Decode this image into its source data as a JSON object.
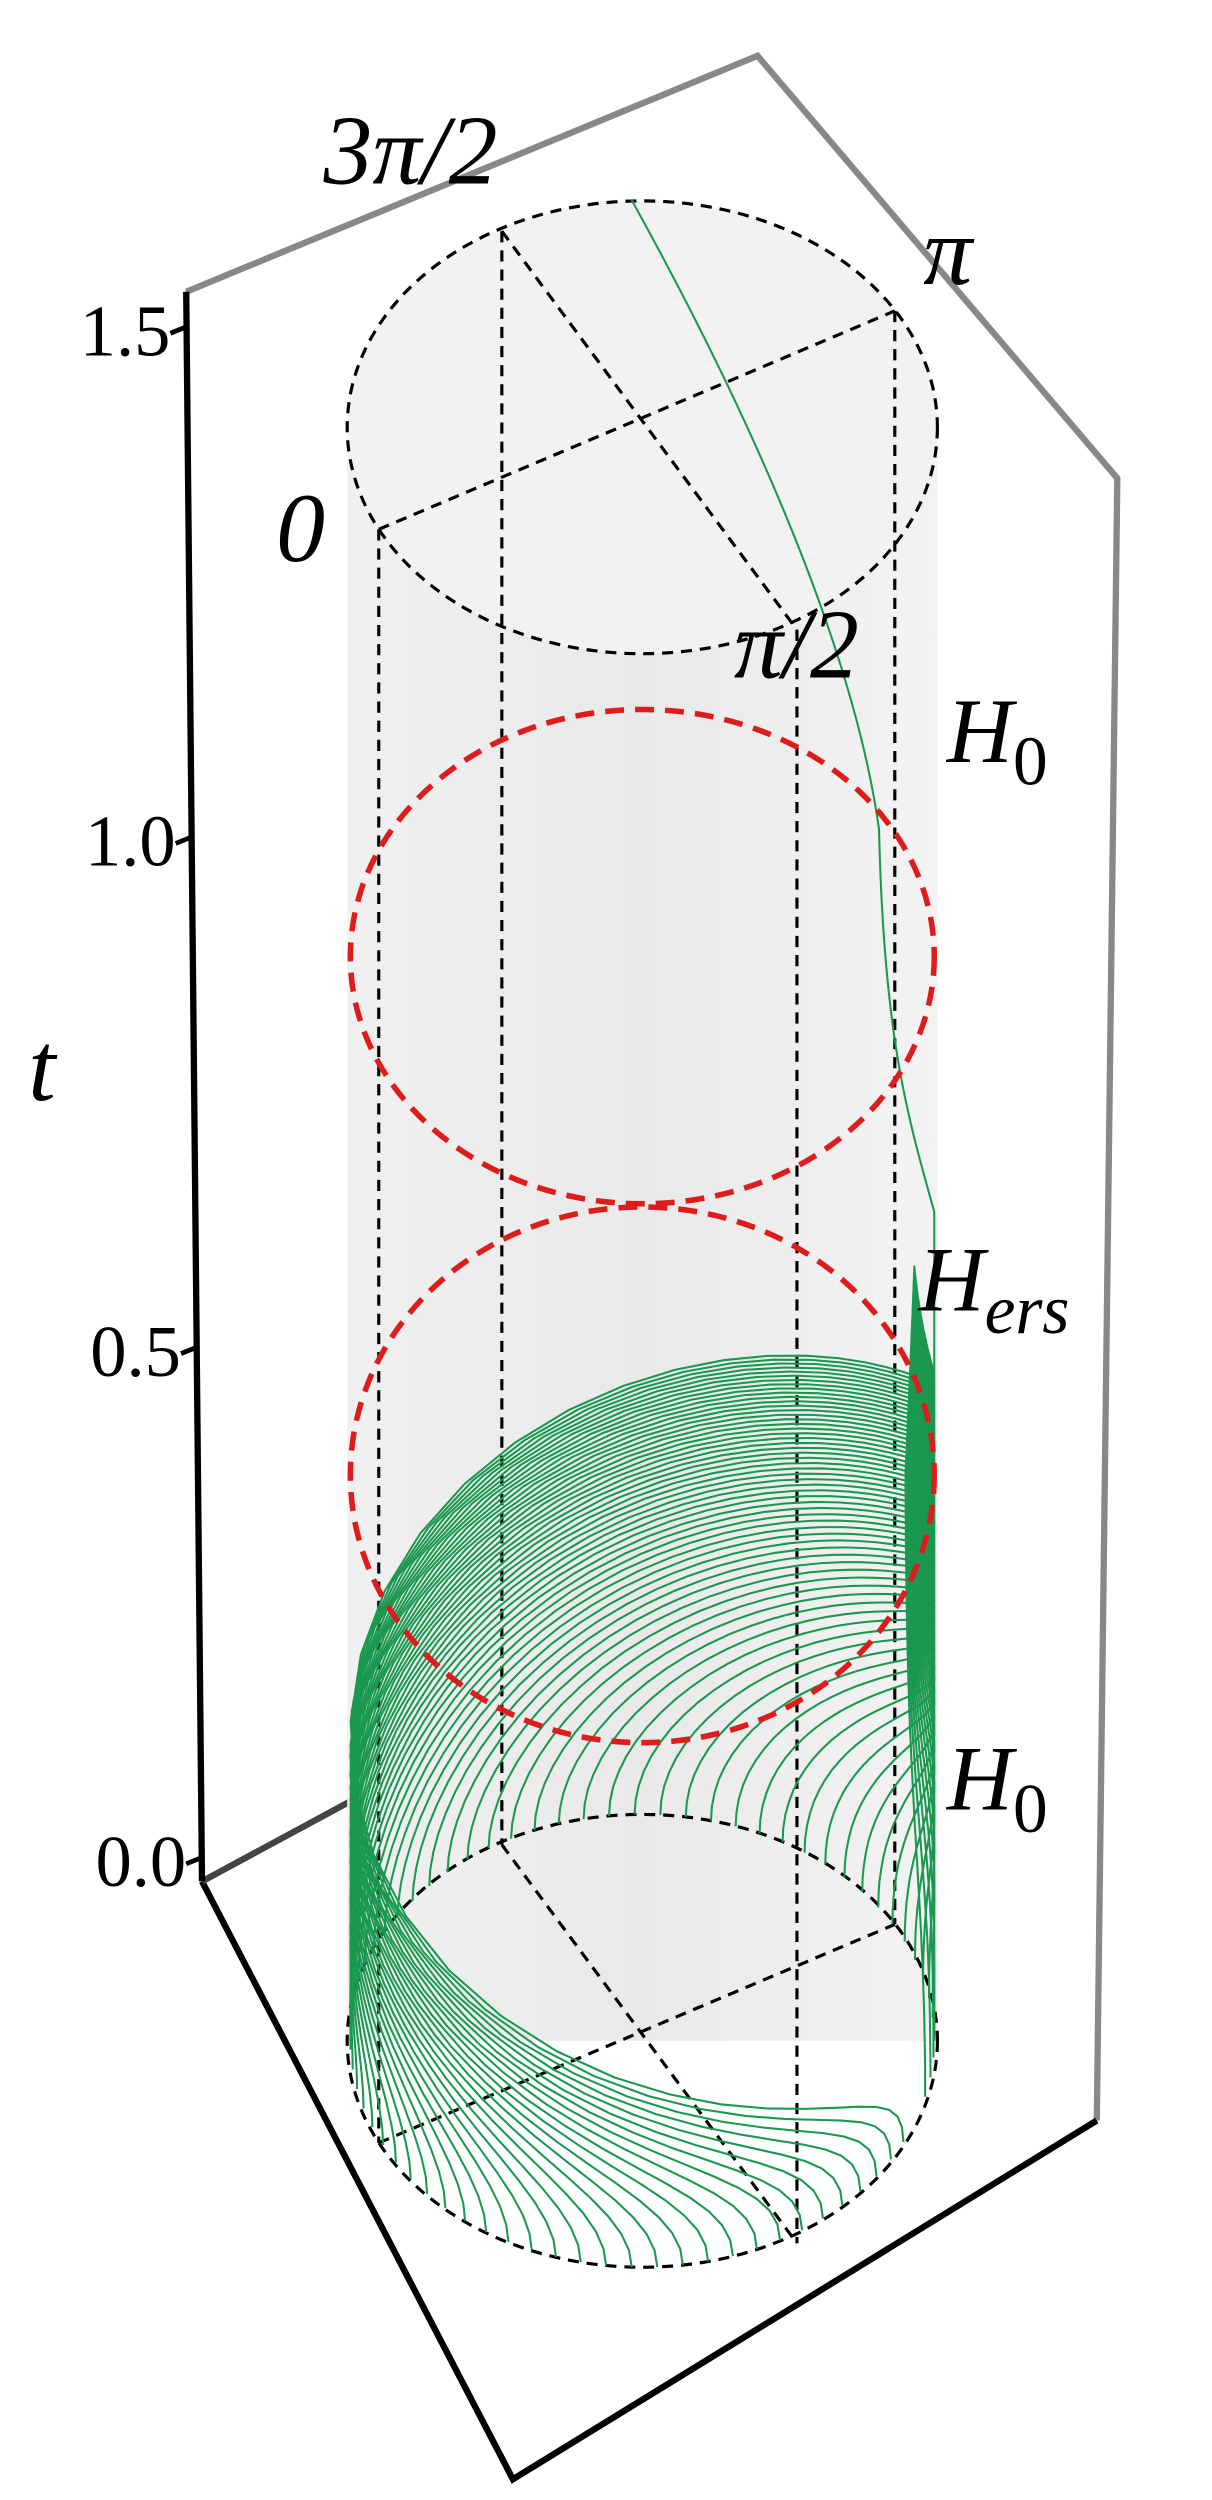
{
  "chart_data": {
    "type": "cylinder3d",
    "y_label": "t",
    "ylim": [
      0,
      1.5
    ],
    "yticks": [
      {
        "value": 0,
        "label": "0.0"
      },
      {
        "value": 0.5,
        "label": "0.5"
      },
      {
        "value": 1,
        "label": "1.0"
      },
      {
        "value": 1.5,
        "label": "1.5"
      }
    ],
    "angle_labels": [
      "0",
      "π/2",
      "π",
      "3π/2"
    ],
    "annotations": [
      {
        "text": "H",
        "sub": "0"
      },
      {
        "text": "H",
        "sub": "ers"
      },
      {
        "text": "H",
        "sub": "0"
      }
    ]
  }
}
